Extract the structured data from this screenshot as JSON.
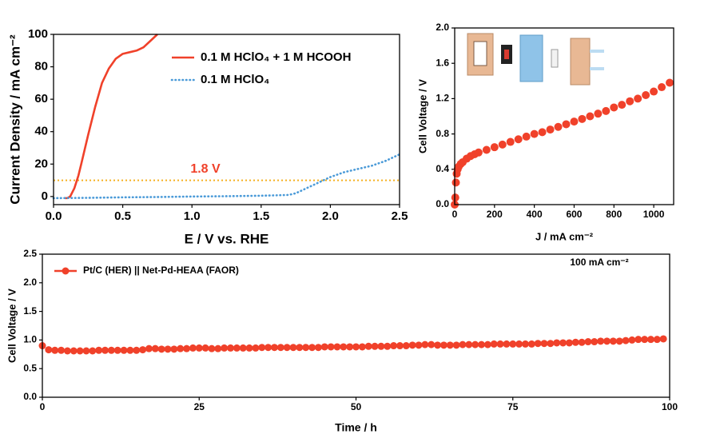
{
  "chart_data": [
    {
      "type": "line",
      "xlabel": "E / V vs. RHE",
      "ylabel": "Current Density / mA cm⁻²",
      "xlim": [
        0,
        2.5
      ],
      "ylim": [
        -5,
        100
      ],
      "xticks": [
        {
          "value": 0,
          "label": "0.0"
        },
        0.5,
        {
          "value": 1,
          "label": "1.0"
        },
        1.5,
        {
          "value": 2,
          "label": "2.0"
        },
        2.5
      ],
      "yticks": [
        0,
        20,
        40,
        60,
        80,
        100
      ],
      "legend": "upper right",
      "series": [
        {
          "name": "0.1 M HClO₄ + 1 M HCOOH",
          "color": "#f0412a",
          "line_style": "solid",
          "x": [
            0.08,
            0.1,
            0.12,
            0.15,
            0.18,
            0.2,
            0.25,
            0.3,
            0.35,
            0.4,
            0.45,
            0.5,
            0.55,
            0.6,
            0.65,
            0.7,
            0.75
          ],
          "values": [
            -1,
            -1,
            0,
            5,
            13,
            20,
            38,
            55,
            70,
            79,
            85,
            88,
            89,
            90,
            92,
            96,
            100
          ]
        },
        {
          "name": "0.1 M HClO₄",
          "color": "#4a9ad8",
          "line_style": "dotted",
          "x": [
            0,
            0.25,
            0.5,
            0.75,
            1.0,
            1.25,
            1.5,
            1.6,
            1.7,
            1.75,
            1.8,
            1.85,
            1.9,
            1.95,
            2.0,
            2.1,
            2.2,
            2.3,
            2.4,
            2.5
          ],
          "values": [
            -1,
            -0.8,
            -0.5,
            -0.3,
            0,
            0.2,
            0.5,
            0.7,
            1,
            2,
            4,
            6,
            8,
            10,
            12,
            15,
            17,
            19,
            22,
            26
          ]
        }
      ],
      "hlines": [
        {
          "value": 10,
          "color": "#f5b120"
        }
      ],
      "annotation": "1.8 V",
      "annotation_color": "#f0412a"
    },
    {
      "type": "scatter",
      "xlabel": "J / mA cm⁻²",
      "ylabel": "Cell Voltage / V",
      "xlim": [
        0,
        1100
      ],
      "ylim": [
        0,
        2.0
      ],
      "xticks": [
        0,
        200,
        400,
        600,
        800,
        1000
      ],
      "yticks": [
        {
          "value": 0,
          "label": "0.0"
        },
        0.4,
        0.8,
        1.2,
        1.6,
        {
          "value": 2,
          "label": "2.0"
        }
      ],
      "series": [
        {
          "color": "#f0412a",
          "marker": "circle",
          "x": [
            0,
            3,
            6,
            10,
            15,
            20,
            30,
            40,
            60,
            80,
            100,
            120,
            160,
            200,
            240,
            280,
            320,
            360,
            400,
            440,
            480,
            520,
            560,
            600,
            640,
            680,
            720,
            760,
            800,
            840,
            880,
            920,
            960,
            1000,
            1040,
            1080
          ],
          "values": [
            0,
            0.08,
            0.25,
            0.35,
            0.4,
            0.43,
            0.46,
            0.48,
            0.52,
            0.55,
            0.57,
            0.59,
            0.62,
            0.65,
            0.68,
            0.71,
            0.74,
            0.77,
            0.8,
            0.82,
            0.85,
            0.88,
            0.91,
            0.94,
            0.97,
            1.0,
            1.03,
            1.06,
            1.1,
            1.13,
            1.17,
            1.2,
            1.24,
            1.28,
            1.33,
            1.38
          ]
        }
      ]
    },
    {
      "type": "scatter",
      "xlabel": "Time / h",
      "ylabel": "Cell Voltage / V",
      "xlim": [
        0,
        100
      ],
      "ylim": [
        0,
        2.5
      ],
      "xticks": [
        0,
        25,
        50,
        75,
        100
      ],
      "yticks": [
        {
          "value": 0,
          "label": "0.0"
        },
        0.5,
        {
          "value": 1,
          "label": "1.0"
        },
        1.5,
        {
          "value": 2,
          "label": "2.0"
        },
        2.5
      ],
      "legend": "upper left",
      "series": [
        {
          "name": "Pt/C (HER) || Net-Pd-HEAA (FAOR)",
          "color": "#f0412a",
          "marker": "circle",
          "x": [
            0,
            1,
            2,
            3,
            4,
            5,
            6,
            7,
            8,
            9,
            10,
            11,
            12,
            13,
            14,
            15,
            16,
            17,
            18,
            19,
            20,
            21,
            22,
            23,
            24,
            25,
            26,
            27,
            28,
            29,
            30,
            31,
            32,
            33,
            34,
            35,
            36,
            37,
            38,
            39,
            40,
            41,
            42,
            43,
            44,
            45,
            46,
            47,
            48,
            49,
            50,
            51,
            52,
            53,
            54,
            55,
            56,
            57,
            58,
            59,
            60,
            61,
            62,
            63,
            64,
            65,
            66,
            67,
            68,
            69,
            70,
            71,
            72,
            73,
            74,
            75,
            76,
            77,
            78,
            79,
            80,
            81,
            82,
            83,
            84,
            85,
            86,
            87,
            88,
            89,
            90,
            91,
            92,
            93,
            94,
            95,
            96,
            97,
            98,
            99
          ],
          "values": [
            0.9,
            0.83,
            0.82,
            0.82,
            0.81,
            0.81,
            0.81,
            0.81,
            0.81,
            0.82,
            0.82,
            0.82,
            0.82,
            0.82,
            0.82,
            0.82,
            0.83,
            0.85,
            0.85,
            0.84,
            0.84,
            0.84,
            0.85,
            0.85,
            0.86,
            0.86,
            0.86,
            0.85,
            0.85,
            0.86,
            0.86,
            0.86,
            0.86,
            0.86,
            0.86,
            0.87,
            0.87,
            0.87,
            0.87,
            0.87,
            0.87,
            0.87,
            0.87,
            0.87,
            0.87,
            0.88,
            0.88,
            0.88,
            0.88,
            0.88,
            0.88,
            0.88,
            0.89,
            0.89,
            0.89,
            0.89,
            0.9,
            0.9,
            0.9,
            0.91,
            0.91,
            0.92,
            0.92,
            0.91,
            0.91,
            0.91,
            0.91,
            0.92,
            0.92,
            0.92,
            0.92,
            0.92,
            0.93,
            0.93,
            0.93,
            0.93,
            0.93,
            0.93,
            0.93,
            0.94,
            0.94,
            0.94,
            0.95,
            0.95,
            0.95,
            0.96,
            0.96,
            0.97,
            0.97,
            0.98,
            0.98,
            0.98,
            0.98,
            0.99,
            1.0,
            1.01,
            1.01,
            1.01,
            1.01,
            1.02
          ]
        }
      ],
      "annotation": "100 mA cm⁻²",
      "annotation_color": "#000000"
    }
  ]
}
